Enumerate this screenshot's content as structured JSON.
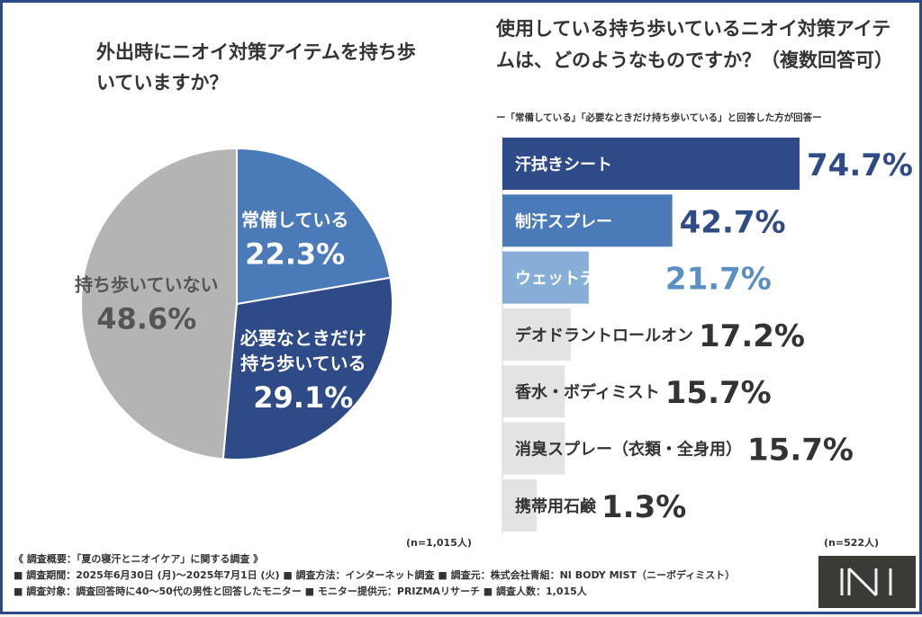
{
  "left": {
    "title": "外出時にニオイ対策アイテムを持ち歩いていますか？",
    "n_note": "(n=1,015人)"
  },
  "right": {
    "title": "使用している持ち歩いているニオイ対策アイテムは、どのようなものですか？（複数回答可）",
    "subnote": "ー「常備している」「必要なときだけ持ち歩いている」と回答した方が回答ー",
    "n_note": "(n=522人)"
  },
  "chart_data": [
    {
      "type": "pie",
      "title": "外出時にニオイ対策アイテムを持ち歩いていますか？",
      "slices": [
        {
          "label": "常備している",
          "value": 22.3,
          "value_label": "22.3%",
          "color": "#4a7ab8",
          "label_color": "#ffffff"
        },
        {
          "label": "必要なときだけ持ち歩いている",
          "value": 29.1,
          "value_label": "29.1%",
          "color": "#2e4a87",
          "label_color": "#ffffff"
        },
        {
          "label": "持ち歩いていない",
          "value": 48.6,
          "value_label": "48.6%",
          "color": "#b4b4b4",
          "label_color": "#555555"
        }
      ]
    },
    {
      "type": "bar",
      "orientation": "horizontal",
      "title": "使用している持ち歩いているニオイ対策アイテムは、どのようなものですか？（複数回答可）",
      "categories": [
        "汗拭きシート",
        "制汗スプレー",
        "ウェットティッシュ",
        "デオドラントロールオン",
        "香水・ボディミスト",
        "消臭スプレー（衣類・全身用）",
        "携帯用石鹸"
      ],
      "values": [
        74.7,
        42.7,
        21.7,
        17.2,
        15.7,
        15.7,
        1.3
      ],
      "value_labels": [
        "74.7%",
        "42.7%",
        "21.7%",
        "17.2%",
        "15.7%",
        "15.7%",
        "1.3%"
      ],
      "bar_colors": [
        "#2e4a87",
        "#4a7ab8",
        "#86aed6",
        "#e3e3e3",
        "#e3e3e3",
        "#e3e3e3",
        "#e3e3e3"
      ],
      "value_colors": [
        "#2e4a87",
        "#2e4a87",
        "#5b8fc4",
        "#333333",
        "#333333",
        "#333333",
        "#333333"
      ],
      "label_colors": [
        "#ffffff",
        "#ffffff",
        "#ffffff",
        "#333333",
        "#333333",
        "#333333",
        "#333333"
      ]
    }
  ],
  "summary": {
    "line1": "《 調査概要：「夏の寝汗とニオイケア」に関する調査 》",
    "line2": "■ 調査期間：2025年6月30日 (月)〜2025年7月1日 (火)  ■ 調査方法：インターネット調査  ■ 調査元：株式会社青組：NI BODY MIST（ニーボディミスト）",
    "line3": "■ 調査対象：調査回答時に40〜50代の男性と回答したモニター  ■ モニター提供元：PRIZMAリサーチ  ■ 調査人数：1,015人"
  },
  "logo": {
    "text": "NI",
    "color": "#3a3a36"
  }
}
